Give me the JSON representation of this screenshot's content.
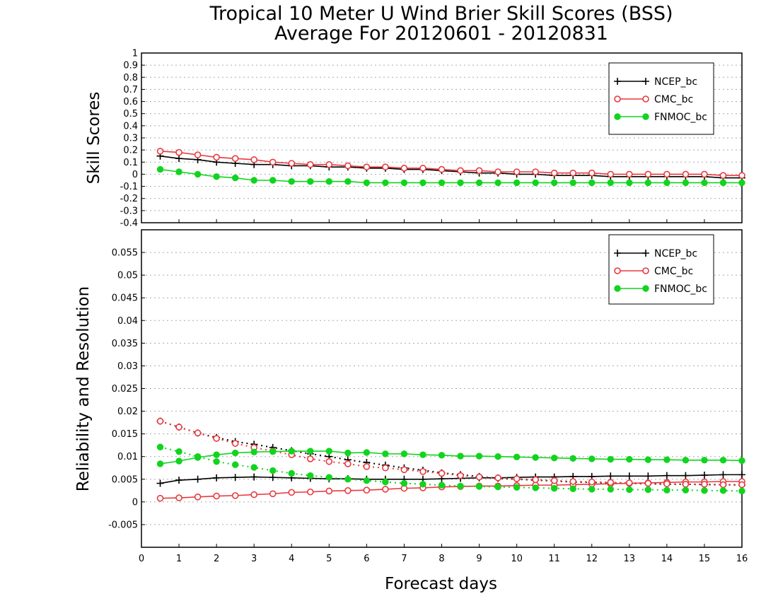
{
  "title": {
    "line1": "Tropical 10 Meter U Wind Brier Skill Scores (BSS)",
    "line2": "Average For 20120601 - 20120831"
  },
  "colors": {
    "ncep": "#000000",
    "cmc": "#e8393e",
    "fnmoc": "#11d41e",
    "grid": "#aaaaaa"
  },
  "chart_data": [
    {
      "type": "line",
      "panel": "top",
      "ylabel": "Skill Scores",
      "xlabel": "",
      "xlim": [
        0,
        16
      ],
      "ylim": [
        -0.4,
        1
      ],
      "grid": true,
      "legend": "top-right",
      "x": [
        0.5,
        1,
        1.5,
        2,
        2.5,
        3,
        3.5,
        4,
        4.5,
        5,
        5.5,
        6,
        6.5,
        7,
        7.5,
        8,
        8.5,
        9,
        9.5,
        10,
        10.5,
        11,
        11.5,
        12,
        12.5,
        13,
        13.5,
        14,
        14.5,
        15,
        15.5,
        16
      ],
      "yticks": [
        "1",
        "0.9",
        "0.8",
        "0.7",
        "0.6",
        "0.5",
        "0.4",
        "0.3",
        "0.2",
        "0.1",
        "0",
        "-0.1",
        "-0.2",
        "-0.3",
        "-0.4"
      ],
      "series": [
        {
          "name": "NCEP_bc",
          "marker": "plus",
          "style": "solid",
          "values": [
            0.15,
            0.13,
            0.12,
            0.1,
            0.09,
            0.08,
            0.08,
            0.07,
            0.07,
            0.06,
            0.06,
            0.05,
            0.05,
            0.04,
            0.04,
            0.03,
            0.02,
            0.01,
            0.01,
            0.0,
            0.0,
            -0.01,
            -0.01,
            -0.01,
            -0.02,
            -0.02,
            -0.02,
            -0.02,
            -0.02,
            -0.02,
            -0.03,
            -0.03
          ]
        },
        {
          "name": "CMC_bc",
          "marker": "open-circle",
          "style": "solid",
          "values": [
            0.19,
            0.18,
            0.16,
            0.14,
            0.13,
            0.12,
            0.1,
            0.09,
            0.08,
            0.08,
            0.07,
            0.06,
            0.06,
            0.05,
            0.05,
            0.04,
            0.03,
            0.03,
            0.02,
            0.02,
            0.02,
            0.01,
            0.01,
            0.01,
            0.0,
            0.0,
            0.0,
            0.0,
            0.0,
            0.0,
            -0.01,
            -0.01
          ]
        },
        {
          "name": "FNMOC_bc",
          "marker": "filled-circle",
          "style": "solid",
          "values": [
            0.04,
            0.02,
            0.0,
            -0.02,
            -0.03,
            -0.05,
            -0.05,
            -0.06,
            -0.06,
            -0.06,
            -0.06,
            -0.07,
            -0.07,
            -0.07,
            -0.07,
            -0.07,
            -0.07,
            -0.07,
            -0.07,
            -0.07,
            -0.07,
            -0.07,
            -0.07,
            -0.07,
            -0.07,
            -0.07,
            -0.07,
            -0.07,
            -0.07,
            -0.07,
            -0.07,
            -0.07
          ]
        }
      ]
    },
    {
      "type": "line",
      "panel": "bottom",
      "ylabel": "Reliability and Resolution",
      "xlabel": "Forecast days",
      "xlim": [
        0,
        16
      ],
      "ylim": [
        -0.01,
        0.06
      ],
      "grid": true,
      "legend": "top-right",
      "x": [
        0.5,
        1,
        1.5,
        2,
        2.5,
        3,
        3.5,
        4,
        4.5,
        5,
        5.5,
        6,
        6.5,
        7,
        7.5,
        8,
        8.5,
        9,
        9.5,
        10,
        10.5,
        11,
        11.5,
        12,
        12.5,
        13,
        13.5,
        14,
        14.5,
        15,
        15.5,
        16
      ],
      "xticks": [
        "0",
        "1",
        "2",
        "3",
        "4",
        "5",
        "6",
        "7",
        "8",
        "9",
        "10",
        "11",
        "12",
        "13",
        "14",
        "15",
        "16"
      ],
      "yticks": [
        "0.055",
        "0.05",
        "0.045",
        "0.04",
        "0.035",
        "0.03",
        "0.025",
        "0.02",
        "0.015",
        "0.01",
        "0.005",
        "0",
        "-0.005"
      ],
      "series": [
        {
          "name": "NCEP_bc",
          "marker": "plus",
          "style": "solid",
          "quantity": "resolution",
          "values": [
            0.0041,
            0.0048,
            0.005,
            0.0053,
            0.0054,
            0.0055,
            0.0054,
            0.0053,
            0.0052,
            0.0051,
            0.0051,
            0.005,
            0.005,
            0.005,
            0.005,
            0.0051,
            0.0052,
            0.0053,
            0.0053,
            0.0054,
            0.0055,
            0.0055,
            0.0056,
            0.0056,
            0.0057,
            0.0057,
            0.0057,
            0.0058,
            0.0058,
            0.0059,
            0.006,
            0.006
          ]
        },
        {
          "name": "NCEP_bc",
          "marker": "plus",
          "style": "dotted",
          "quantity": "reliability",
          "values": [
            0.0178,
            0.0165,
            0.0152,
            0.0142,
            0.0133,
            0.0127,
            0.012,
            0.0113,
            0.0106,
            0.01,
            0.0093,
            0.0087,
            0.0081,
            0.0075,
            0.007,
            0.0064,
            0.006,
            0.0056,
            0.0052,
            0.005,
            0.0048,
            0.0046,
            0.0044,
            0.0043,
            0.0042,
            0.0041,
            0.004,
            0.0039,
            0.0039,
            0.0038,
            0.0038,
            0.0037
          ]
        },
        {
          "name": "CMC_bc",
          "marker": "open-circle",
          "style": "solid",
          "quantity": "resolution",
          "values": [
            0.0008,
            0.0009,
            0.0011,
            0.0013,
            0.0014,
            0.0016,
            0.0018,
            0.0021,
            0.0022,
            0.0024,
            0.0025,
            0.0026,
            0.0028,
            0.003,
            0.0031,
            0.0033,
            0.0034,
            0.0035,
            0.0035,
            0.0036,
            0.0037,
            0.0037,
            0.0038,
            0.0039,
            0.004,
            0.0041,
            0.0042,
            0.0043,
            0.0044,
            0.0044,
            0.0045,
            0.0045
          ]
        },
        {
          "name": "CMC_bc",
          "marker": "open-circle",
          "style": "dotted",
          "quantity": "reliability",
          "values": [
            0.0178,
            0.0165,
            0.0152,
            0.014,
            0.0129,
            0.012,
            0.0112,
            0.0104,
            0.0095,
            0.0089,
            0.0084,
            0.0078,
            0.0075,
            0.0071,
            0.0067,
            0.0063,
            0.0058,
            0.0055,
            0.0053,
            0.0051,
            0.0049,
            0.0047,
            0.0045,
            0.0044,
            0.0043,
            0.0042,
            0.0041,
            0.004,
            0.0039,
            0.0039,
            0.0038,
            0.0038
          ]
        },
        {
          "name": "FNMOC_bc",
          "marker": "filled-circle",
          "style": "solid",
          "quantity": "resolution",
          "values": [
            0.0084,
            0.009,
            0.0098,
            0.0104,
            0.0108,
            0.011,
            0.0111,
            0.0112,
            0.0112,
            0.0112,
            0.0108,
            0.0109,
            0.0106,
            0.0106,
            0.0104,
            0.0103,
            0.0101,
            0.0101,
            0.01,
            0.0099,
            0.0098,
            0.0097,
            0.0096,
            0.0095,
            0.0094,
            0.0094,
            0.0093,
            0.0093,
            0.0092,
            0.0092,
            0.0092,
            0.0091
          ]
        },
        {
          "name": "FNMOC_bc",
          "marker": "filled-circle",
          "style": "dotted",
          "quantity": "reliability",
          "values": [
            0.0121,
            0.0111,
            0.01,
            0.0089,
            0.0082,
            0.0076,
            0.0069,
            0.0063,
            0.0058,
            0.0054,
            0.005,
            0.0047,
            0.0044,
            0.0041,
            0.0039,
            0.0037,
            0.0035,
            0.0034,
            0.0033,
            0.0032,
            0.0031,
            0.003,
            0.0029,
            0.0028,
            0.0028,
            0.0027,
            0.0027,
            0.0026,
            0.0026,
            0.0025,
            0.0025,
            0.0024
          ]
        }
      ]
    }
  ]
}
